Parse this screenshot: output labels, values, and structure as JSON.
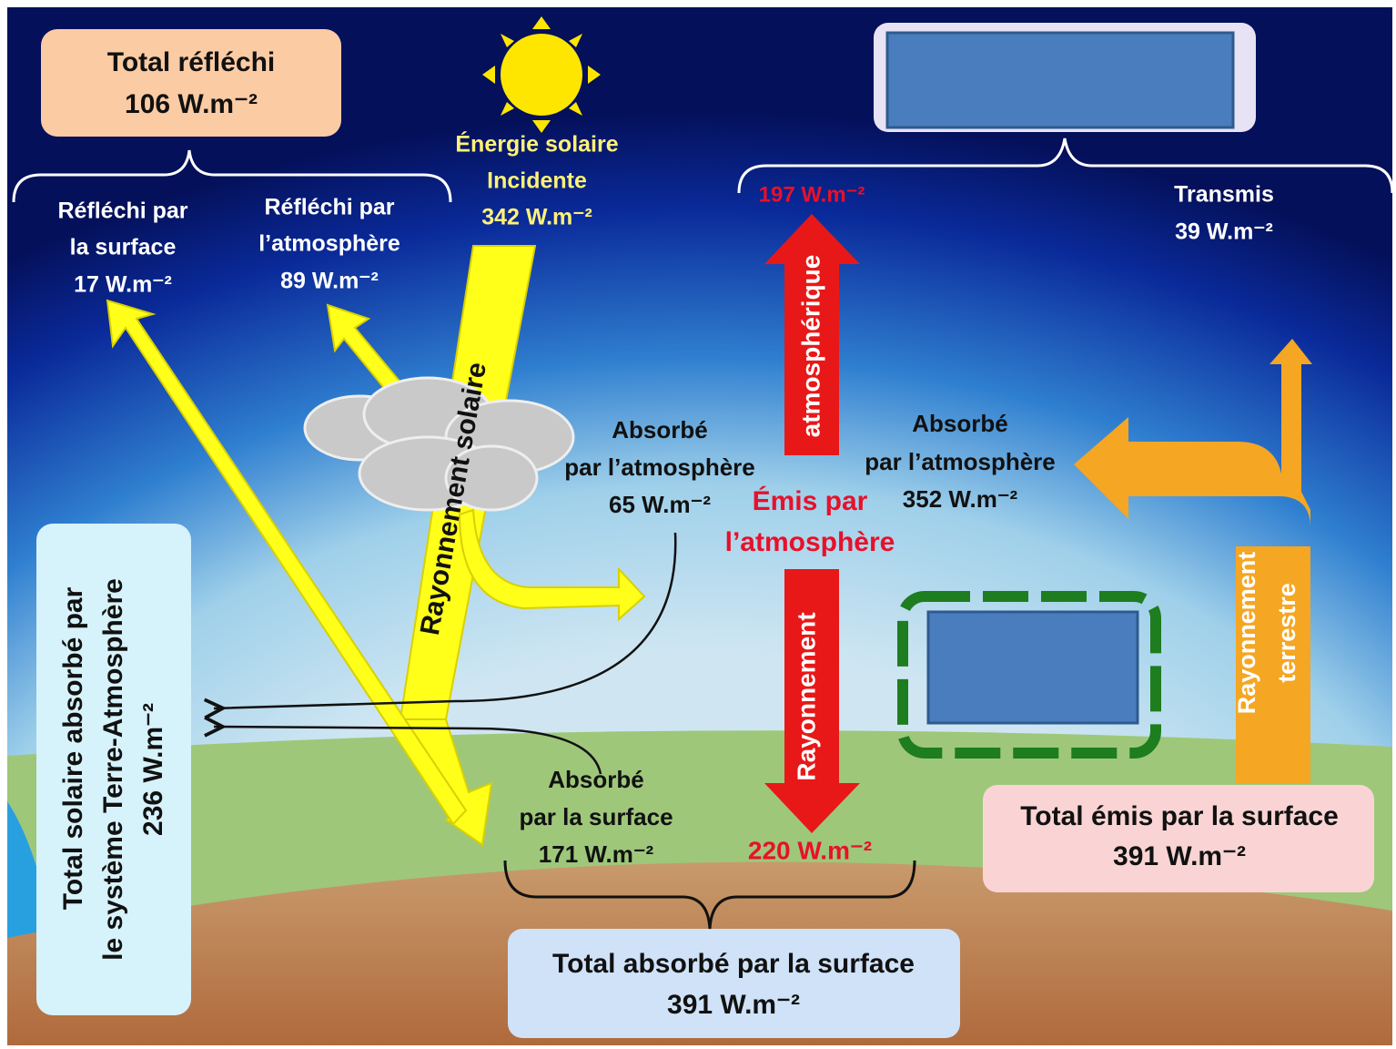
{
  "labels": {
    "total_reflechi": [
      "Total réfléchi",
      "106 W.m⁻²"
    ],
    "energie_solaire": [
      "Énergie solaire",
      "Incidente",
      "342 W.m⁻²"
    ],
    "reflechi_surface": [
      "Réfléchi par",
      "la surface",
      "17 W.m⁻²"
    ],
    "reflechi_atmosphere": [
      "Réfléchi par",
      "l’atmosphère",
      "89 W.m⁻²"
    ],
    "emis_haut": [
      "197 W.m⁻²"
    ],
    "transmis": [
      "Transmis",
      "39 W.m⁻²"
    ],
    "rayonnement_solaire": [
      "Rayonnement solaire"
    ],
    "atmospherique": [
      "atmosphérique"
    ],
    "absorbe_atm_65": [
      "Absorbé",
      "par l’atmosphère",
      "65 W.m⁻²"
    ],
    "absorbe_atm_352": [
      "Absorbé",
      "par l’atmosphère",
      "352 W.m⁻²"
    ],
    "emis_atmosphere": [
      "Émis par",
      "l’atmosphère"
    ],
    "rayonnement_bas": [
      "Rayonnement"
    ],
    "rayonnement_terrestre": [
      "Rayonnement",
      "terrestre"
    ],
    "total_solaire_absorbe": [
      "Total solaire absorbé par",
      "le système Terre-Atmosphère",
      "236 W.m⁻²"
    ],
    "absorbe_surface": [
      "Absorbé",
      "par la surface",
      "171 W.m⁻²"
    ],
    "emis_bas": [
      "220 W.m⁻²"
    ],
    "total_emis_surface": [
      "Total émis par la surface",
      "391 W.m⁻²"
    ],
    "total_absorbe_surface": [
      "Total absorbé par la surface",
      "391 W.m⁻²"
    ]
  }
}
